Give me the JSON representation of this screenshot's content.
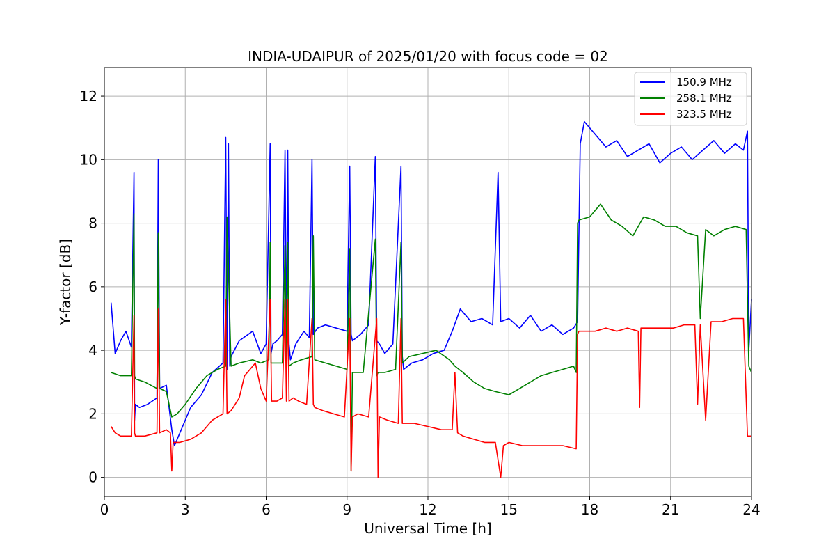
{
  "chart_data": {
    "type": "line",
    "title": "INDIA-UDAIPUR of 2025/01/20 with focus code = 02",
    "xlabel": "Universal Time [h]",
    "ylabel": "Y-factor [dB]",
    "xlim": [
      0,
      24
    ],
    "ylim": [
      -0.6,
      12.9
    ],
    "xticks": [
      0,
      3,
      6,
      9,
      12,
      15,
      18,
      21,
      24
    ],
    "yticks": [
      0,
      2,
      4,
      6,
      8,
      10,
      12
    ],
    "grid": true,
    "legend_position": "upper right",
    "series": [
      {
        "name": "150.9 MHz",
        "color": "#0000ff",
        "x": [
          0.25,
          0.4,
          0.6,
          0.8,
          1.0,
          1.1,
          1.12,
          1.15,
          1.3,
          1.6,
          1.95,
          2.0,
          2.05,
          2.3,
          2.5,
          2.6,
          2.9,
          3.2,
          3.6,
          4.0,
          4.4,
          4.5,
          4.55,
          4.6,
          4.65,
          4.7,
          5.0,
          5.5,
          5.8,
          6.0,
          6.15,
          6.18,
          6.25,
          6.4,
          6.6,
          6.7,
          6.75,
          6.8,
          6.85,
          6.9,
          7.1,
          7.4,
          7.6,
          7.7,
          7.75,
          7.9,
          8.2,
          8.6,
          9.0,
          9.1,
          9.15,
          9.2,
          9.5,
          9.8,
          10.05,
          10.1,
          10.2,
          10.4,
          10.7,
          11.0,
          11.05,
          11.1,
          11.4,
          11.8,
          12.2,
          12.6,
          12.9,
          13.2,
          13.6,
          14.0,
          14.4,
          14.6,
          14.7,
          15.0,
          15.4,
          15.8,
          16.2,
          16.6,
          17.0,
          17.4,
          17.55,
          17.65,
          17.8,
          18.2,
          18.6,
          19.0,
          19.4,
          19.8,
          20.2,
          20.6,
          21.0,
          21.4,
          21.8,
          22.2,
          22.6,
          23.0,
          23.4,
          23.7,
          23.85,
          23.9,
          24.0
        ],
        "y": [
          5.5,
          3.9,
          4.3,
          4.6,
          4.1,
          9.6,
          1.8,
          2.3,
          2.2,
          2.3,
          2.5,
          10.0,
          2.8,
          2.9,
          1.5,
          1.0,
          1.6,
          2.2,
          2.6,
          3.3,
          3.6,
          10.7,
          3.4,
          10.5,
          3.5,
          3.8,
          4.3,
          4.6,
          3.9,
          4.2,
          10.5,
          3.9,
          4.2,
          4.3,
          4.5,
          10.3,
          4.0,
          10.3,
          4.2,
          3.7,
          4.2,
          4.6,
          4.4,
          10.0,
          4.5,
          4.7,
          4.8,
          4.7,
          4.6,
          9.8,
          4.5,
          4.3,
          4.5,
          4.8,
          10.1,
          4.3,
          4.2,
          3.9,
          4.2,
          9.8,
          3.8,
          3.4,
          3.6,
          3.7,
          3.9,
          4.0,
          4.6,
          5.3,
          4.9,
          5.0,
          4.8,
          9.6,
          4.9,
          5.0,
          4.7,
          5.1,
          4.6,
          4.8,
          4.5,
          4.7,
          4.9,
          10.5,
          11.2,
          10.8,
          10.4,
          10.6,
          10.1,
          10.3,
          10.5,
          9.9,
          10.2,
          10.4,
          10.0,
          10.3,
          10.6,
          10.2,
          10.5,
          10.3,
          10.9,
          4.0,
          5.6
        ]
      },
      {
        "name": "258.1 MHz",
        "color": "#008000",
        "x": [
          0.25,
          0.6,
          1.0,
          1.1,
          1.12,
          1.15,
          1.5,
          1.95,
          2.0,
          2.05,
          2.3,
          2.5,
          2.7,
          3.0,
          3.4,
          3.8,
          4.2,
          4.5,
          4.55,
          4.7,
          5.0,
          5.5,
          5.8,
          6.1,
          6.15,
          6.18,
          6.3,
          6.6,
          6.7,
          6.75,
          6.8,
          6.85,
          7.0,
          7.3,
          7.7,
          7.75,
          7.8,
          8.2,
          8.6,
          9.0,
          9.1,
          9.15,
          9.2,
          9.6,
          10.05,
          10.1,
          10.15,
          10.4,
          10.8,
          11.0,
          11.05,
          11.3,
          11.8,
          12.3,
          12.8,
          13.0,
          13.3,
          13.7,
          14.1,
          14.5,
          15.0,
          15.4,
          15.8,
          16.2,
          16.6,
          17.0,
          17.4,
          17.5,
          17.55,
          17.6,
          18.0,
          18.4,
          18.8,
          19.2,
          19.6,
          20.0,
          20.4,
          20.8,
          21.2,
          21.6,
          22.0,
          22.1,
          22.3,
          22.6,
          23.0,
          23.4,
          23.8,
          23.9,
          24.0
        ],
        "y": [
          3.3,
          3.2,
          3.2,
          8.3,
          3.2,
          3.1,
          3.0,
          2.8,
          7.7,
          2.8,
          2.7,
          1.9,
          2.0,
          2.3,
          2.8,
          3.2,
          3.4,
          3.5,
          8.2,
          3.5,
          3.6,
          3.7,
          3.6,
          3.7,
          7.4,
          3.6,
          3.6,
          3.6,
          7.3,
          3.6,
          7.4,
          3.5,
          3.6,
          3.7,
          3.8,
          7.6,
          3.7,
          3.6,
          3.5,
          3.4,
          7.2,
          0.2,
          3.3,
          3.3,
          7.5,
          3.2,
          3.3,
          3.3,
          3.4,
          7.4,
          3.6,
          3.8,
          3.9,
          4.0,
          3.7,
          3.5,
          3.3,
          3.0,
          2.8,
          2.7,
          2.6,
          2.8,
          3.0,
          3.2,
          3.3,
          3.4,
          3.5,
          3.3,
          8.0,
          8.1,
          8.2,
          8.6,
          8.1,
          7.9,
          7.6,
          8.2,
          8.1,
          7.9,
          7.9,
          7.7,
          7.6,
          5.0,
          7.8,
          7.6,
          7.8,
          7.9,
          7.8,
          3.5,
          3.3
        ]
      },
      {
        "name": "323.5 MHz",
        "color": "#ff0000",
        "x": [
          0.25,
          0.4,
          0.6,
          1.0,
          1.1,
          1.12,
          1.15,
          1.5,
          1.95,
          2.0,
          2.05,
          2.3,
          2.45,
          2.5,
          2.55,
          2.8,
          3.2,
          3.6,
          4.0,
          4.4,
          4.5,
          4.55,
          4.7,
          5.0,
          5.2,
          5.4,
          5.6,
          5.8,
          6.0,
          6.15,
          6.2,
          6.4,
          6.6,
          6.7,
          6.75,
          6.8,
          6.85,
          7.0,
          7.2,
          7.5,
          7.7,
          7.75,
          7.8,
          8.1,
          8.5,
          8.9,
          9.1,
          9.15,
          9.2,
          9.4,
          9.8,
          10.1,
          10.15,
          10.2,
          10.5,
          10.9,
          11.0,
          11.05,
          11.5,
          12.0,
          12.5,
          12.9,
          13.0,
          13.1,
          13.3,
          13.7,
          14.1,
          14.5,
          14.7,
          14.8,
          15.0,
          15.5,
          16.0,
          16.5,
          17.0,
          17.5,
          17.55,
          17.6,
          17.8,
          18.2,
          18.6,
          19.0,
          19.4,
          19.8,
          19.85,
          19.9,
          20.3,
          20.7,
          21.1,
          21.5,
          21.9,
          22.0,
          22.1,
          22.3,
          22.5,
          22.9,
          23.3,
          23.7,
          23.85,
          23.9,
          24.0
        ],
        "y": [
          1.6,
          1.4,
          1.3,
          1.3,
          5.1,
          1.4,
          1.3,
          1.3,
          1.4,
          5.3,
          1.4,
          1.5,
          1.4,
          0.2,
          1.1,
          1.1,
          1.2,
          1.4,
          1.8,
          2.0,
          5.6,
          2.0,
          2.1,
          2.5,
          3.2,
          3.4,
          3.6,
          2.8,
          2.4,
          5.6,
          2.4,
          2.4,
          2.5,
          5.6,
          2.4,
          5.6,
          2.4,
          2.5,
          2.4,
          2.3,
          5.0,
          2.3,
          2.2,
          2.1,
          2.0,
          1.9,
          5.0,
          0.2,
          1.9,
          2.0,
          1.9,
          5.0,
          0.0,
          1.9,
          1.8,
          1.7,
          5.0,
          1.7,
          1.7,
          1.6,
          1.5,
          1.5,
          3.3,
          1.4,
          1.3,
          1.2,
          1.1,
          1.1,
          0.0,
          1.0,
          1.1,
          1.0,
          1.0,
          1.0,
          1.0,
          0.9,
          4.5,
          4.6,
          4.6,
          4.6,
          4.7,
          4.6,
          4.7,
          4.6,
          2.2,
          4.7,
          4.7,
          4.7,
          4.7,
          4.8,
          4.8,
          2.3,
          4.8,
          1.8,
          4.9,
          4.9,
          5.0,
          5.0,
          1.3,
          1.3,
          1.3
        ]
      }
    ]
  }
}
